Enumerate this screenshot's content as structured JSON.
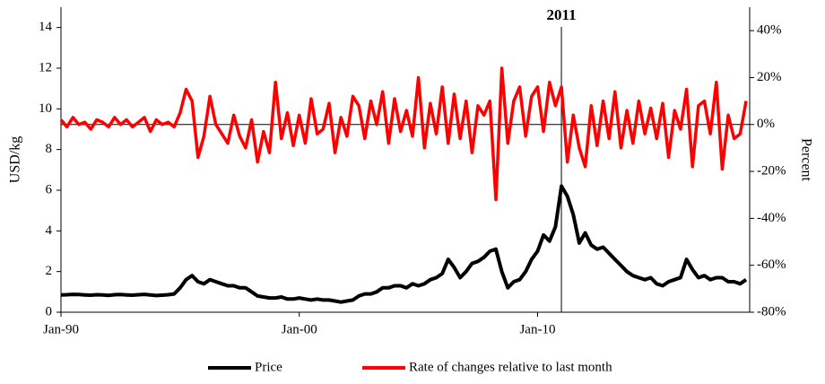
{
  "chart_data": {
    "type": "line",
    "y_label": "USD/kg",
    "y2_label": "Percent",
    "annotation": "2011",
    "categories": [
      "Jan-90",
      null,
      null,
      null,
      null,
      null,
      null,
      null,
      null,
      null,
      null,
      null,
      null,
      null,
      null,
      null,
      null,
      null,
      null,
      null,
      null,
      null,
      null,
      null,
      null,
      null,
      null,
      null,
      null,
      null,
      null,
      null,
      null,
      null,
      null,
      null,
      null,
      null,
      null,
      null,
      "Jan-00",
      null,
      null,
      null,
      null,
      null,
      null,
      null,
      null,
      null,
      null,
      null,
      null,
      null,
      null,
      null,
      null,
      null,
      null,
      null,
      null,
      null,
      null,
      null,
      null,
      null,
      null,
      null,
      null,
      null,
      null,
      null,
      null,
      null,
      null,
      null,
      null,
      null,
      null,
      null,
      "Jan-10",
      null,
      null,
      null,
      null,
      null,
      null,
      null,
      null,
      null,
      null,
      null,
      null,
      null,
      null,
      null,
      null,
      null,
      null,
      null,
      null,
      null,
      null,
      null,
      null,
      null,
      null,
      null,
      null,
      null,
      null,
      null,
      null,
      null,
      null,
      null
    ],
    "series": [
      {
        "name": "Price",
        "color": "#000000",
        "axis": "y",
        "values": [
          0.85,
          0.86,
          0.88,
          0.87,
          0.85,
          0.84,
          0.86,
          0.85,
          0.83,
          0.86,
          0.87,
          0.85,
          0.84,
          0.86,
          0.88,
          0.85,
          0.82,
          0.84,
          0.86,
          0.9,
          1.2,
          1.6,
          1.8,
          1.5,
          1.4,
          1.6,
          1.5,
          1.4,
          1.3,
          1.3,
          1.2,
          1.2,
          1.0,
          0.8,
          0.75,
          0.7,
          0.7,
          0.75,
          0.65,
          0.65,
          0.7,
          0.65,
          0.6,
          0.65,
          0.6,
          0.6,
          0.55,
          0.5,
          0.55,
          0.6,
          0.8,
          0.9,
          0.9,
          1.0,
          1.2,
          1.2,
          1.3,
          1.3,
          1.2,
          1.4,
          1.3,
          1.4,
          1.6,
          1.7,
          1.9,
          2.6,
          2.2,
          1.7,
          2.0,
          2.4,
          2.5,
          2.7,
          3.0,
          3.1,
          2.0,
          1.2,
          1.5,
          1.6,
          2.0,
          2.6,
          3.0,
          3.8,
          3.5,
          4.2,
          6.2,
          5.7,
          4.8,
          3.4,
          3.9,
          3.3,
          3.1,
          3.2,
          2.9,
          2.6,
          2.3,
          2.0,
          1.8,
          1.7,
          1.6,
          1.7,
          1.4,
          1.3,
          1.5,
          1.6,
          1.7,
          2.6,
          2.1,
          1.7,
          1.8,
          1.6,
          1.7,
          1.7,
          1.5,
          1.5,
          1.4,
          1.6
        ]
      },
      {
        "name": "Rate of changes relative to last month",
        "color": "#ff0000",
        "axis": "y2",
        "values": [
          2,
          -1,
          3,
          0,
          1,
          -2,
          2,
          1,
          -1,
          3,
          0,
          2,
          -1,
          1,
          3,
          -3,
          2,
          0,
          1,
          -1,
          5,
          15,
          10,
          -14,
          -5,
          12,
          0,
          -4,
          -8,
          4,
          -5,
          -10,
          2,
          -16,
          -3,
          -12,
          18,
          -6,
          5,
          -9,
          4,
          -8,
          11,
          -4,
          -2,
          9,
          -12,
          3,
          -5,
          12,
          8,
          -6,
          10,
          0,
          14,
          -8,
          11,
          -3,
          6,
          -5,
          20,
          -10,
          9,
          -4,
          16,
          -8,
          13,
          -6,
          10,
          -12,
          8,
          4,
          10,
          -32,
          24,
          -8,
          10,
          16,
          -5,
          12,
          16,
          -3,
          18,
          8,
          16,
          -16,
          4,
          -10,
          -18,
          8,
          -9,
          10,
          -6,
          14,
          -10,
          6,
          -8,
          10,
          -4,
          7,
          -6,
          9,
          -14,
          6,
          -2,
          15,
          -18,
          8,
          10,
          -4,
          18,
          -19,
          4,
          -6,
          -4,
          10
        ]
      }
    ],
    "ylim": [
      0,
      15
    ],
    "yticks": [
      0,
      2,
      4,
      6,
      8,
      10,
      12,
      14
    ],
    "y2lim": [
      -80,
      50
    ],
    "y2ticks": [
      {
        "value": -80,
        "label": "-80%"
      },
      {
        "value": -60,
        "label": "-60%"
      },
      {
        "value": -40,
        "label": "-40%"
      },
      {
        "value": -20,
        "label": "-20%"
      },
      {
        "value": 0,
        "label": "0%"
      },
      {
        "value": 20,
        "label": "20%"
      },
      {
        "value": 40,
        "label": "40%"
      }
    ],
    "legend": "bottom"
  }
}
